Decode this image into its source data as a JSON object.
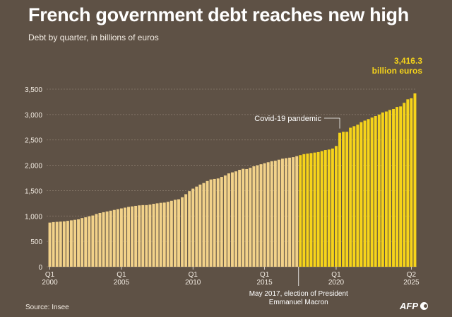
{
  "header": {
    "title": "French government debt reaches new high",
    "subtitle": "Debt by quarter, in billions of euros"
  },
  "footer": {
    "source": "Source: Insee",
    "logo_text": "AFP"
  },
  "colors": {
    "background": "#5e5145",
    "bar_before": "#f2d28a",
    "bar_after": "#f6d41a",
    "highlight_text": "#f6d41a",
    "grid": "#8a7c6e",
    "axis_text": "#f3ece3"
  },
  "chart_data": {
    "type": "bar",
    "title": "French government debt reaches new high",
    "subtitle": "Debt by quarter, in billions of euros",
    "xlabel": "",
    "ylabel": "",
    "ylim": [
      0,
      3500
    ],
    "yticks": [
      0,
      500,
      1000,
      1500,
      2000,
      2500,
      3000,
      3500
    ],
    "ytick_labels": [
      "0",
      "500",
      "1,000",
      "1,500",
      "2,000",
      "2,500",
      "3,000",
      "3,500"
    ],
    "grid": true,
    "start_year": 2000,
    "xticks": [
      {
        "index": 0,
        "quarter": "Q1",
        "year": "2000"
      },
      {
        "index": 20,
        "quarter": "Q1",
        "year": "2005"
      },
      {
        "index": 40,
        "quarter": "Q1",
        "year": "2010"
      },
      {
        "index": 60,
        "quarter": "Q1",
        "year": "2015"
      },
      {
        "index": 80,
        "quarter": "Q1",
        "year": "2020"
      },
      {
        "index": 101,
        "quarter": "Q2",
        "year": "2025"
      }
    ],
    "highlight_from_index": 70,
    "values": [
      870,
      880,
      885,
      890,
      895,
      905,
      915,
      925,
      935,
      960,
      975,
      995,
      1010,
      1040,
      1060,
      1075,
      1090,
      1105,
      1120,
      1135,
      1150,
      1165,
      1180,
      1190,
      1200,
      1210,
      1215,
      1215,
      1225,
      1240,
      1250,
      1260,
      1265,
      1280,
      1300,
      1320,
      1330,
      1370,
      1430,
      1490,
      1540,
      1580,
      1620,
      1650,
      1690,
      1720,
      1730,
      1740,
      1770,
      1800,
      1840,
      1860,
      1880,
      1910,
      1930,
      1925,
      1950,
      1980,
      2000,
      2020,
      2040,
      2060,
      2080,
      2090,
      2110,
      2130,
      2140,
      2150,
      2160,
      2180,
      2200,
      2220,
      2230,
      2240,
      2250,
      2260,
      2280,
      2300,
      2310,
      2330,
      2380,
      2640,
      2660,
      2660,
      2740,
      2770,
      2800,
      2850,
      2880,
      2910,
      2940,
      2970,
      3000,
      3040,
      3060,
      3090,
      3110,
      3150,
      3160,
      3230,
      3300,
      3320,
      3416.3
    ],
    "annotations": [
      {
        "label": "Covid-19 pandemic",
        "index": 81
      },
      {
        "label_line1": "May 2017, election of President",
        "label_line2": "Emmanuel Macron",
        "index": 70
      },
      {
        "label_line1": "3,416.3",
        "label_line2": "billion euros",
        "index": 102
      }
    ]
  }
}
